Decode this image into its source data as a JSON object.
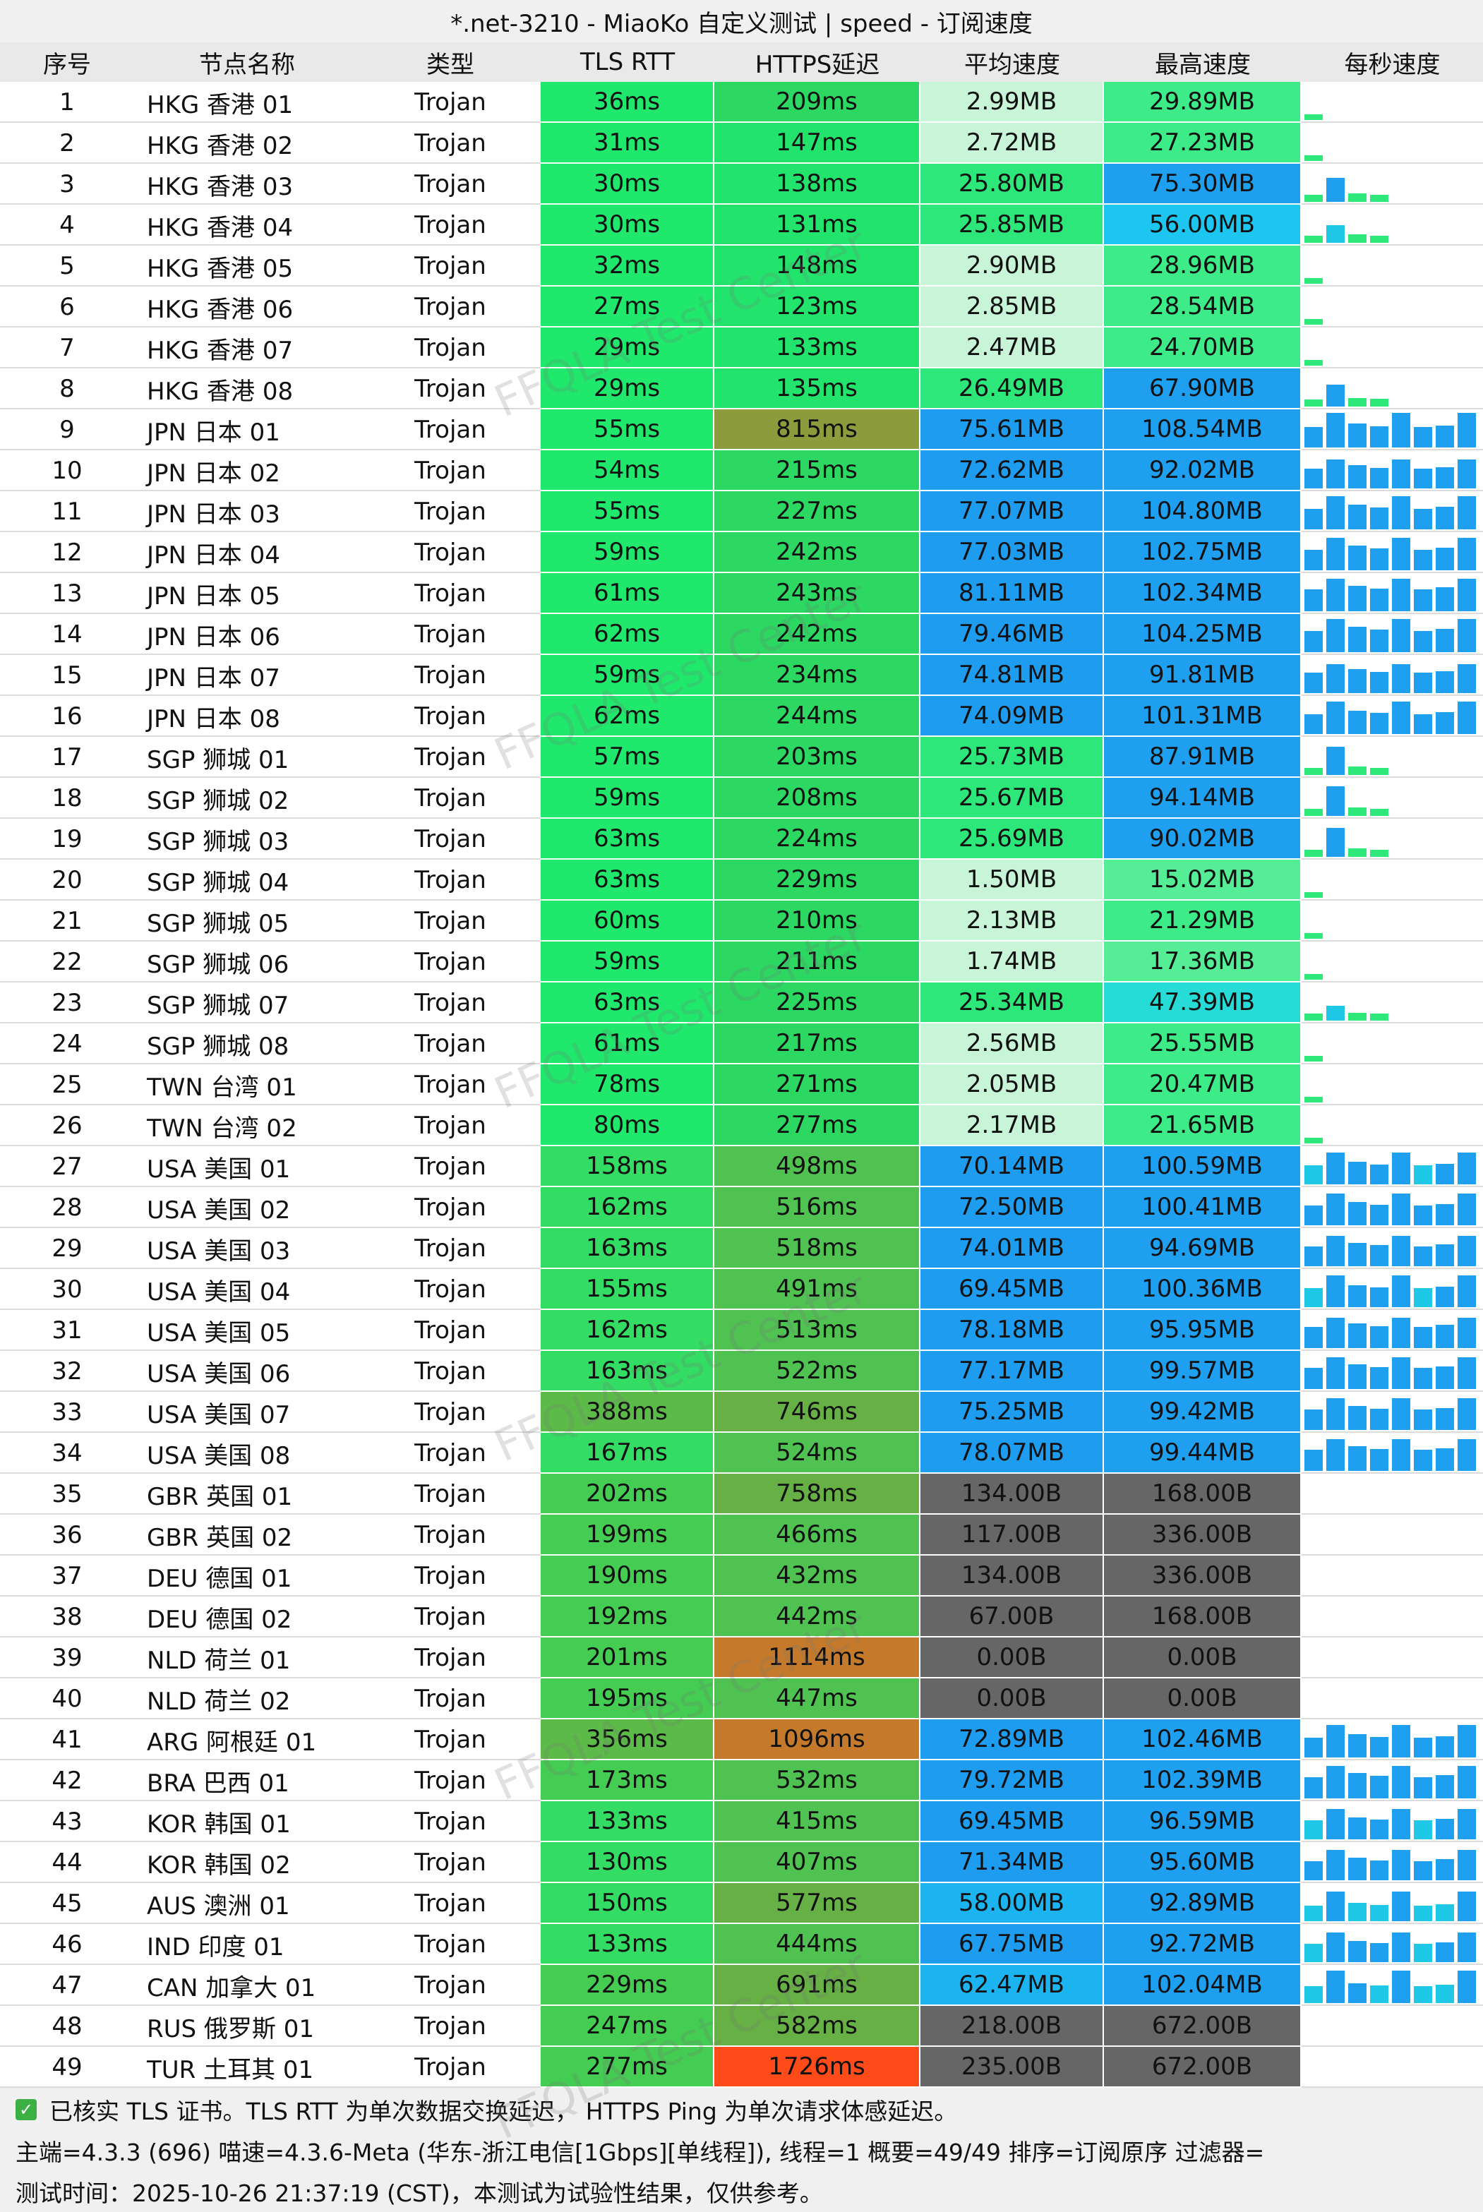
{
  "title": "*.net-3210 - MiaoKo 自定义测试 | speed - 订阅速度",
  "watermark": "FFQLA Test Center",
  "table": {
    "headers": [
      "序号",
      "节点名称",
      "类型",
      "TLS RTT",
      "HTTPS延迟",
      "平均速度",
      "最高速度",
      "每秒速度"
    ],
    "rows": [
      [
        1,
        "HKG 香港 01",
        "Trojan",
        "36ms",
        "209ms",
        "2.99MB",
        "29.89MB"
      ],
      [
        2,
        "HKG 香港 02",
        "Trojan",
        "31ms",
        "147ms",
        "2.72MB",
        "27.23MB"
      ],
      [
        3,
        "HKG 香港 03",
        "Trojan",
        "30ms",
        "138ms",
        "25.80MB",
        "75.30MB"
      ],
      [
        4,
        "HKG 香港 04",
        "Trojan",
        "30ms",
        "131ms",
        "25.85MB",
        "56.00MB"
      ],
      [
        5,
        "HKG 香港 05",
        "Trojan",
        "32ms",
        "148ms",
        "2.90MB",
        "28.96MB"
      ],
      [
        6,
        "HKG 香港 06",
        "Trojan",
        "27ms",
        "123ms",
        "2.85MB",
        "28.54MB"
      ],
      [
        7,
        "HKG 香港 07",
        "Trojan",
        "29ms",
        "133ms",
        "2.47MB",
        "24.70MB"
      ],
      [
        8,
        "HKG 香港 08",
        "Trojan",
        "29ms",
        "135ms",
        "26.49MB",
        "67.90MB"
      ],
      [
        9,
        "JPN 日本 01",
        "Trojan",
        "55ms",
        "815ms",
        "75.61MB",
        "108.54MB"
      ],
      [
        10,
        "JPN 日本 02",
        "Trojan",
        "54ms",
        "215ms",
        "72.62MB",
        "92.02MB"
      ],
      [
        11,
        "JPN 日本 03",
        "Trojan",
        "55ms",
        "227ms",
        "77.07MB",
        "104.80MB"
      ],
      [
        12,
        "JPN 日本 04",
        "Trojan",
        "59ms",
        "242ms",
        "77.03MB",
        "102.75MB"
      ],
      [
        13,
        "JPN 日本 05",
        "Trojan",
        "61ms",
        "243ms",
        "81.11MB",
        "102.34MB"
      ],
      [
        14,
        "JPN 日本 06",
        "Trojan",
        "62ms",
        "242ms",
        "79.46MB",
        "104.25MB"
      ],
      [
        15,
        "JPN 日本 07",
        "Trojan",
        "59ms",
        "234ms",
        "74.81MB",
        "91.81MB"
      ],
      [
        16,
        "JPN 日本 08",
        "Trojan",
        "62ms",
        "244ms",
        "74.09MB",
        "101.31MB"
      ],
      [
        17,
        "SGP 狮城 01",
        "Trojan",
        "57ms",
        "203ms",
        "25.73MB",
        "87.91MB"
      ],
      [
        18,
        "SGP 狮城 02",
        "Trojan",
        "59ms",
        "208ms",
        "25.67MB",
        "94.14MB"
      ],
      [
        19,
        "SGP 狮城 03",
        "Trojan",
        "63ms",
        "224ms",
        "25.69MB",
        "90.02MB"
      ],
      [
        20,
        "SGP 狮城 04",
        "Trojan",
        "63ms",
        "229ms",
        "1.50MB",
        "15.02MB"
      ],
      [
        21,
        "SGP 狮城 05",
        "Trojan",
        "60ms",
        "210ms",
        "2.13MB",
        "21.29MB"
      ],
      [
        22,
        "SGP 狮城 06",
        "Trojan",
        "59ms",
        "211ms",
        "1.74MB",
        "17.36MB"
      ],
      [
        23,
        "SGP 狮城 07",
        "Trojan",
        "63ms",
        "225ms",
        "25.34MB",
        "47.39MB"
      ],
      [
        24,
        "SGP 狮城 08",
        "Trojan",
        "61ms",
        "217ms",
        "2.56MB",
        "25.55MB"
      ],
      [
        25,
        "TWN 台湾 01",
        "Trojan",
        "78ms",
        "271ms",
        "2.05MB",
        "20.47MB"
      ],
      [
        26,
        "TWN 台湾 02",
        "Trojan",
        "80ms",
        "277ms",
        "2.17MB",
        "21.65MB"
      ],
      [
        27,
        "USA 美国 01",
        "Trojan",
        "158ms",
        "498ms",
        "70.14MB",
        "100.59MB"
      ],
      [
        28,
        "USA 美国 02",
        "Trojan",
        "162ms",
        "516ms",
        "72.50MB",
        "100.41MB"
      ],
      [
        29,
        "USA 美国 03",
        "Trojan",
        "163ms",
        "518ms",
        "74.01MB",
        "94.69MB"
      ],
      [
        30,
        "USA 美国 04",
        "Trojan",
        "155ms",
        "491ms",
        "69.45MB",
        "100.36MB"
      ],
      [
        31,
        "USA 美国 05",
        "Trojan",
        "162ms",
        "513ms",
        "78.18MB",
        "95.95MB"
      ],
      [
        32,
        "USA 美国 06",
        "Trojan",
        "163ms",
        "522ms",
        "77.17MB",
        "99.57MB"
      ],
      [
        33,
        "USA 美国 07",
        "Trojan",
        "388ms",
        "746ms",
        "75.25MB",
        "99.42MB"
      ],
      [
        34,
        "USA 美国 08",
        "Trojan",
        "167ms",
        "524ms",
        "78.07MB",
        "99.44MB"
      ],
      [
        35,
        "GBR 英国 01",
        "Trojan",
        "202ms",
        "758ms",
        "134.00B",
        "168.00B"
      ],
      [
        36,
        "GBR 英国 02",
        "Trojan",
        "199ms",
        "466ms",
        "117.00B",
        "336.00B"
      ],
      [
        37,
        "DEU 德国 01",
        "Trojan",
        "190ms",
        "432ms",
        "134.00B",
        "336.00B"
      ],
      [
        38,
        "DEU 德国 02",
        "Trojan",
        "192ms",
        "442ms",
        "67.00B",
        "168.00B"
      ],
      [
        39,
        "NLD 荷兰 01",
        "Trojan",
        "201ms",
        "1114ms",
        "0.00B",
        "0.00B"
      ],
      [
        40,
        "NLD 荷兰 02",
        "Trojan",
        "195ms",
        "447ms",
        "0.00B",
        "0.00B"
      ],
      [
        41,
        "ARG 阿根廷 01",
        "Trojan",
        "356ms",
        "1096ms",
        "72.89MB",
        "102.46MB"
      ],
      [
        42,
        "BRA 巴西 01",
        "Trojan",
        "173ms",
        "532ms",
        "79.72MB",
        "102.39MB"
      ],
      [
        43,
        "KOR 韩国 01",
        "Trojan",
        "133ms",
        "415ms",
        "69.45MB",
        "96.59MB"
      ],
      [
        44,
        "KOR 韩国 02",
        "Trojan",
        "130ms",
        "407ms",
        "71.34MB",
        "95.60MB"
      ],
      [
        45,
        "AUS 澳洲 01",
        "Trojan",
        "150ms",
        "577ms",
        "58.00MB",
        "92.89MB"
      ],
      [
        46,
        "IND 印度 01",
        "Trojan",
        "133ms",
        "444ms",
        "67.75MB",
        "92.72MB"
      ],
      [
        47,
        "CAN 加拿大 01",
        "Trojan",
        "229ms",
        "691ms",
        "62.47MB",
        "102.04MB"
      ],
      [
        48,
        "RUS 俄罗斯 01",
        "Trojan",
        "247ms",
        "582ms",
        "218.00B",
        "672.00B"
      ],
      [
        49,
        "TUR 土耳其 01",
        "Trojan",
        "277ms",
        "1726ms",
        "235.00B",
        "672.00B"
      ]
    ]
  },
  "footer": [
    "已核实 TLS 证书。TLS RTT 为单次数据交换延迟， HTTPS Ping 为单次请求体感延迟。",
    "主端=4.3.3 (696) 喵速=4.3.6-Meta (华东-浙江电信[1Gbps][单线程]), 线程=1 概要=49/49 排序=订阅原序 过滤器=",
    "测试时间：2025-10-26 21:37:19 (CST)，本测试为试验性结果，仅供参考。"
  ]
}
